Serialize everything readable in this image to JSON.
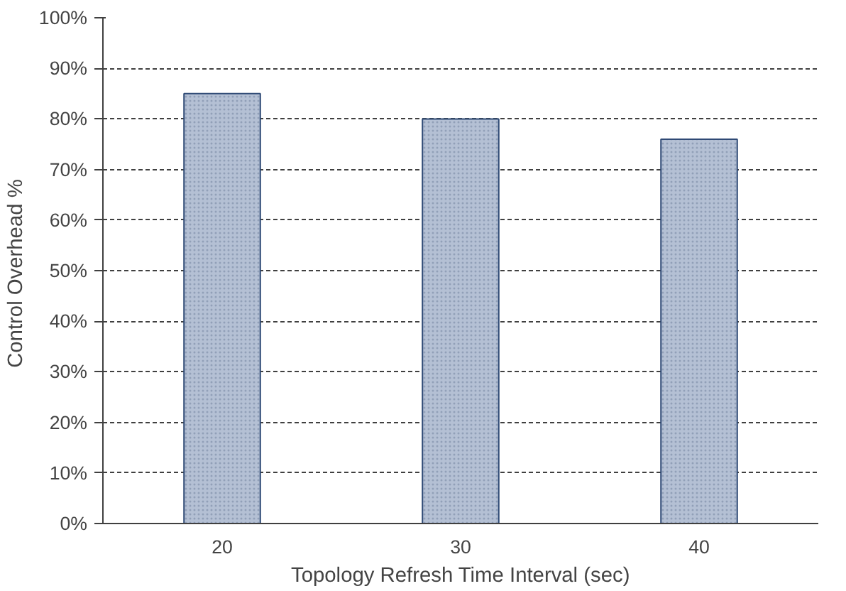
{
  "chart_data": {
    "type": "bar",
    "xlabel": "Topology Refresh Time Interval (sec)",
    "ylabel": "Control Overhead  %",
    "categories": [
      "20",
      "30",
      "40"
    ],
    "values": [
      85,
      80,
      76
    ],
    "color": "#b4c0d4",
    "ylim": [
      0,
      100
    ],
    "yticks": [
      {
        "value": 0,
        "label": "0%"
      },
      {
        "value": 10,
        "label": "10%"
      },
      {
        "value": 20,
        "label": "20%"
      },
      {
        "value": 30,
        "label": "30%"
      },
      {
        "value": 40,
        "label": "40%"
      },
      {
        "value": 50,
        "label": "50%"
      },
      {
        "value": 60,
        "label": "60%"
      },
      {
        "value": 70,
        "label": "70%"
      },
      {
        "value": 80,
        "label": "80%"
      },
      {
        "value": 90,
        "label": "90%"
      },
      {
        "value": 100,
        "label": "100%"
      }
    ],
    "grid": "y"
  }
}
